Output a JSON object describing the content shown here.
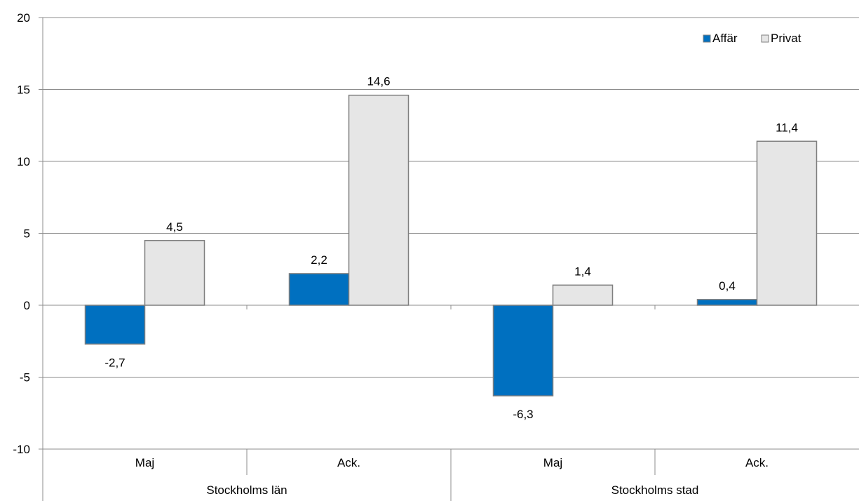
{
  "chart_data": {
    "type": "bar",
    "groups": [
      {
        "label": "Stockholms län",
        "categories": [
          "Maj",
          "Ack."
        ]
      },
      {
        "label": "Stockholms stad",
        "categories": [
          "Maj",
          "Ack."
        ]
      }
    ],
    "categories": [
      "Maj",
      "Ack.",
      "Maj",
      "Ack."
    ],
    "series": [
      {
        "name": "Affär",
        "values": [
          -2.7,
          2.2,
          -6.3,
          0.4
        ],
        "labels": [
          "-2,7",
          "2,2",
          "-6,3",
          "0,4"
        ],
        "color": "#0070C0"
      },
      {
        "name": "Privat",
        "values": [
          4.5,
          14.6,
          1.4,
          11.4
        ],
        "labels": [
          "4,5",
          "14,6",
          "1,4",
          "11,4"
        ],
        "color": "#E6E6E6"
      }
    ],
    "ylim": [
      -10,
      20
    ],
    "yticks": [
      -10,
      -5,
      0,
      5,
      10,
      15,
      20
    ],
    "ytick_labels": [
      "-10",
      "-5",
      "0",
      "5",
      "10",
      "15",
      "20"
    ],
    "grid": true,
    "legend": "top-right",
    "bar_border_color": "#7F7F7F",
    "grid_color": "#8C8C8C"
  }
}
